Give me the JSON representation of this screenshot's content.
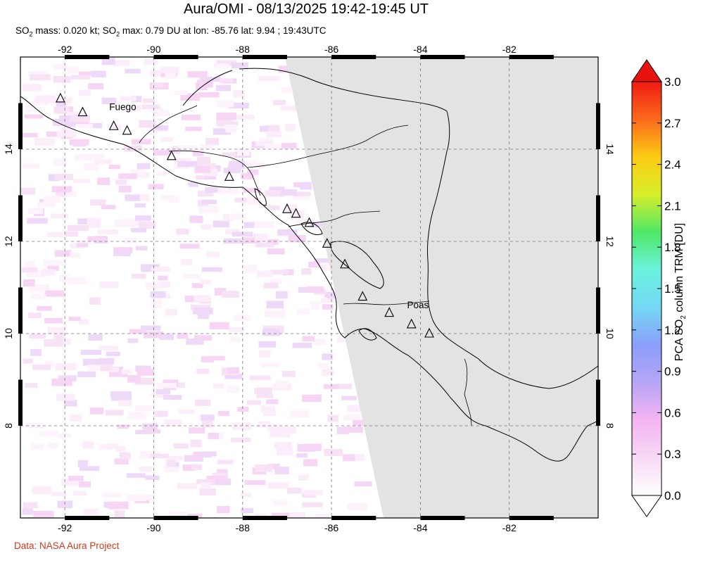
{
  "title": "Aura/OMI - 08/13/2025 19:42-19:45 UT",
  "subtitle": {
    "p1": "SO",
    "s1": "2",
    "p2": " mass: 0.020 kt; SO",
    "s2": "2",
    "p3": " max: 0.79 DU at lon: -85.76 lat: 9.94 ; 19:43UTC"
  },
  "map": {
    "lon_range": [
      -93,
      -80
    ],
    "lat_range": [
      6,
      16
    ],
    "lon_ticks": [
      {
        "value": -92,
        "label": "-92"
      },
      {
        "value": -90,
        "label": "-90"
      },
      {
        "value": -88,
        "label": "-88"
      },
      {
        "value": -86,
        "label": "-86"
      },
      {
        "value": -84,
        "label": "-84"
      },
      {
        "value": -82,
        "label": "-82"
      }
    ],
    "lat_ticks": [
      {
        "value": 14,
        "label": "14"
      },
      {
        "value": 12,
        "label": "12"
      },
      {
        "value": 10,
        "label": "10"
      },
      {
        "value": 8,
        "label": "8"
      }
    ],
    "gridlines": true,
    "no_data_color": "#e3e3e3",
    "volcanoes": [
      {
        "lon": -92.1,
        "lat": 15.1
      },
      {
        "lon": -91.6,
        "lat": 14.8
      },
      {
        "lon": -90.9,
        "lat": 14.5
      },
      {
        "lon": -90.6,
        "lat": 14.4
      },
      {
        "lon": -89.6,
        "lat": 13.85
      },
      {
        "lon": -88.3,
        "lat": 13.4
      },
      {
        "lon": -87.0,
        "lat": 12.7
      },
      {
        "lon": -86.8,
        "lat": 12.6
      },
      {
        "lon": -86.5,
        "lat": 12.4
      },
      {
        "lon": -86.1,
        "lat": 11.95
      },
      {
        "lon": -85.7,
        "lat": 11.5
      },
      {
        "lon": -85.3,
        "lat": 10.8
      },
      {
        "lon": -84.7,
        "lat": 10.45
      },
      {
        "lon": -84.2,
        "lat": 10.2
      },
      {
        "lon": -83.8,
        "lat": 10.0
      }
    ],
    "labels": [
      {
        "text": "Fuego",
        "lon": -91.0,
        "lat": 14.85
      },
      {
        "text": "Poas",
        "lon": -84.3,
        "lat": 10.55
      }
    ]
  },
  "colorbar": {
    "title_a": "PCA SO",
    "title_sub": "2",
    "title_b": " column TRM [DU]",
    "ticks": [
      "3.0",
      "2.7",
      "2.4",
      "2.1",
      "1.8",
      "1.5",
      "1.2",
      "0.9",
      "0.6",
      "0.3",
      "0.0"
    ],
    "stops": [
      "#ffffff",
      "#f7d9f5",
      "#f5b4f2",
      "#b7a5f7",
      "#8a9ef9",
      "#74d8f5",
      "#6af2dd",
      "#4ee866",
      "#d7ee2a",
      "#fccc13",
      "#fb6a1c",
      "#f01a12"
    ],
    "over_color": "#e8130f",
    "under_color": "#ffffff"
  },
  "credit": "Data: NASA Aura Project"
}
